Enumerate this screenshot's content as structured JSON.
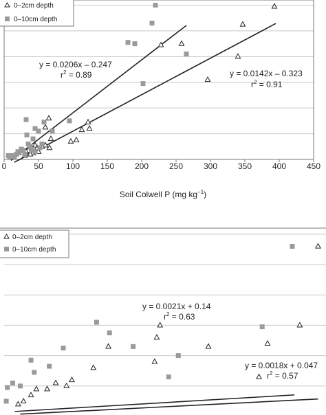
{
  "chart_data": [
    {
      "type": "scatter",
      "title": "",
      "xlabel": "Soil Colwell P (mg kg",
      "xlabel_sup": "−1",
      "xlabel_end": ")",
      "ylabel": "",
      "xlim": [
        0,
        450
      ],
      "ylim": [
        0,
        6.2
      ],
      "x_ticks": [
        0,
        50,
        100,
        150,
        200,
        250,
        300,
        350,
        400,
        450
      ],
      "x_tick_labels": [
        "0",
        "50",
        "100",
        "150",
        "200",
        "250",
        "300",
        "350",
        "400",
        "450"
      ],
      "y_gridlines": [
        1,
        2,
        3,
        4,
        5,
        6
      ],
      "legend_position": "top-left",
      "series": [
        {
          "name": "0–2cm depth",
          "marker": "open-triangle",
          "color": "#222222",
          "points": [
            [
              393,
              5.95
            ],
            [
              347,
              5.25
            ],
            [
              258,
              4.5
            ],
            [
              228,
              4.45
            ],
            [
              340,
              4.0
            ],
            [
              296,
              3.1
            ],
            [
              65,
              1.6
            ],
            [
              60,
              1.25
            ],
            [
              122,
              1.45
            ],
            [
              124,
              1.2
            ],
            [
              113,
              1.15
            ],
            [
              105,
              0.75
            ],
            [
              97,
              0.7
            ],
            [
              68,
              0.8
            ],
            [
              60,
              0.55
            ],
            [
              55,
              0.5
            ],
            [
              48,
              0.45
            ],
            [
              40,
              0.4
            ],
            [
              35,
              0.35
            ],
            [
              32,
              0.3
            ],
            [
              42,
              0.25
            ],
            [
              38,
              0.2
            ],
            [
              50,
              0.3
            ],
            [
              66,
              0.45
            ],
            [
              45,
              0.55
            ],
            [
              30,
              0.15
            ]
          ]
        },
        {
          "name": "0–10cm depth",
          "marker": "filled-square",
          "color": "#9a9a9a",
          "points": [
            [
              220,
              6.0
            ],
            [
              215,
              5.3
            ],
            [
              180,
              4.55
            ],
            [
              190,
              4.5
            ],
            [
              265,
              4.1
            ],
            [
              202,
              2.95
            ],
            [
              32,
              1.55
            ],
            [
              45,
              1.2
            ],
            [
              50,
              1.1
            ],
            [
              70,
              1.1
            ],
            [
              95,
              1.5
            ],
            [
              58,
              1.45
            ],
            [
              33,
              0.95
            ],
            [
              42,
              0.8
            ],
            [
              55,
              0.6
            ],
            [
              38,
              0.5
            ],
            [
              28,
              0.35
            ],
            [
              22,
              0.25
            ],
            [
              18,
              0.2
            ],
            [
              12,
              0.15
            ],
            [
              8,
              0.1
            ],
            [
              6,
              0.15
            ],
            [
              25,
              0.4
            ],
            [
              45,
              0.3
            ],
            [
              30,
              0.2
            ],
            [
              15,
              0.1
            ],
            [
              20,
              0.3
            ],
            [
              52,
              0.45
            ],
            [
              40,
              0.35
            ],
            [
              35,
              0.6
            ]
          ]
        }
      ],
      "fits": [
        {
          "equation": "y = 0.0206x – 0.247",
          "r2_label": "r",
          "r2_value": " = 0.89",
          "slope": 0.0206,
          "intercept": -0.247,
          "x_range": [
            10,
            265
          ]
        },
        {
          "equation": "y = 0.0142x – 0.323",
          "r2_label": "r",
          "r2_value": " = 0.91",
          "slope": 0.0142,
          "intercept": -0.323,
          "x_range": [
            15,
            395
          ]
        }
      ]
    },
    {
      "type": "scatter",
      "title": "",
      "xlabel": "",
      "ylabel": "",
      "xlim": [
        0,
        300
      ],
      "ylim": [
        0,
        6.2
      ],
      "x_ticks": [],
      "x_tick_labels": [],
      "y_gridlines": [
        1,
        2,
        3,
        4,
        5,
        6
      ],
      "legend_position": "top-left",
      "series": [
        {
          "name": "0–2cm depth",
          "marker": "open-triangle",
          "color": "#222222",
          "points": [
            [
              292,
              5.6
            ],
            [
              275,
              3.0
            ],
            [
              245,
              2.4
            ],
            [
              237,
              1.3
            ],
            [
              190,
              2.3
            ],
            [
              145,
              3.0
            ],
            [
              142,
              2.6
            ],
            [
              140,
              1.8
            ],
            [
              97,
              2.3
            ],
            [
              83,
              1.6
            ],
            [
              63,
              1.2
            ],
            [
              58,
              1.0
            ],
            [
              48,
              1.1
            ],
            [
              40,
              0.9
            ],
            [
              30,
              0.9
            ],
            [
              25,
              0.7
            ],
            [
              18,
              0.5
            ],
            [
              13,
              0.4
            ]
          ]
        },
        {
          "name": "0–10cm depth",
          "marker": "filled-square",
          "color": "#9a9a9a",
          "points": [
            [
              268,
              5.6
            ],
            [
              240,
              2.95
            ],
            [
              153,
              1.3
            ],
            [
              162,
              2.0
            ],
            [
              120,
              2.3
            ],
            [
              98,
              2.75
            ],
            [
              86,
              3.1
            ],
            [
              55,
              2.25
            ],
            [
              42,
              1.65
            ],
            [
              28,
              1.45
            ],
            [
              25,
              1.85
            ],
            [
              15,
              1.0
            ],
            [
              8,
              1.1
            ],
            [
              3,
              0.95
            ],
            [
              2,
              0.5
            ]
          ]
        }
      ],
      "fits": [
        {
          "equation": "y = 0.0021x + 0.14",
          "r2_label": "r",
          "r2_value": " = 0.63",
          "slope": 0.0021,
          "intercept": 0.14,
          "x_range": [
            10,
            270
          ]
        },
        {
          "equation": "y = 0.0018x + 0.047",
          "r2_label": "r",
          "r2_value": " = 0.57",
          "slope": 0.0018,
          "intercept": 0.047,
          "x_range": [
            15,
            292
          ]
        }
      ]
    }
  ]
}
